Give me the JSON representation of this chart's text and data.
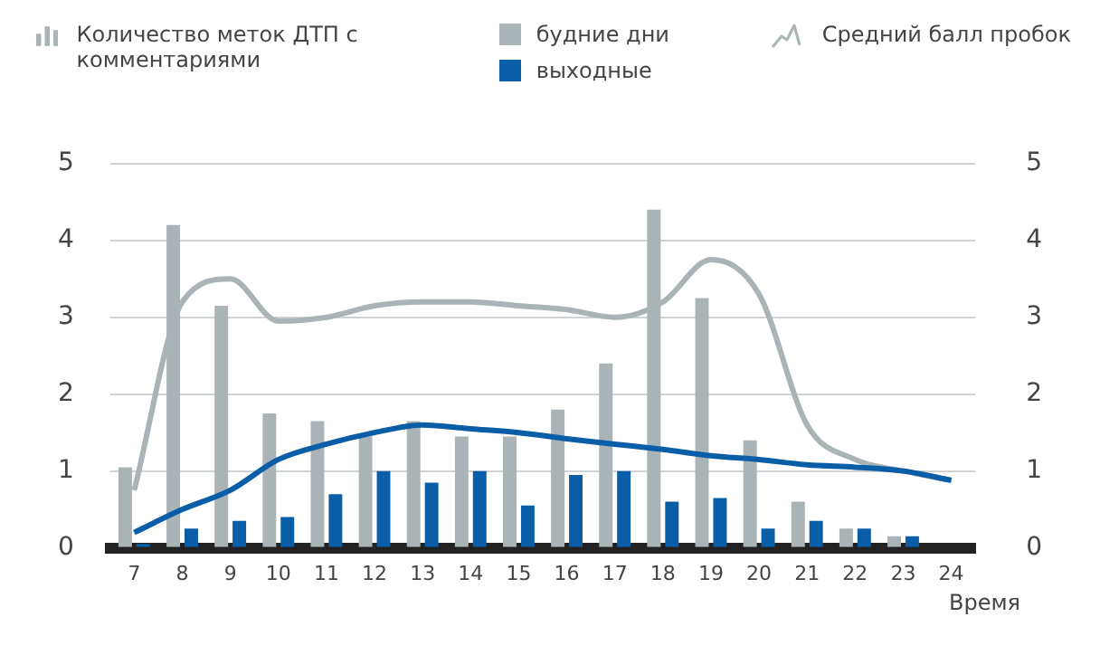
{
  "chart_data": {
    "type": "bar",
    "ylabel": "Количество меток ДТП с комментариями",
    "y2label": "Средний балл пробок",
    "xlabel": "Время",
    "categories": [
      "7",
      "8",
      "9",
      "10",
      "11",
      "12",
      "13",
      "14",
      "15",
      "16",
      "17",
      "18",
      "19",
      "20",
      "21",
      "22",
      "23",
      "24"
    ],
    "series": [
      {
        "name": "будние дни",
        "color": "#aab3b5",
        "values": [
          1.05,
          4.2,
          3.15,
          1.75,
          1.65,
          1.45,
          1.65,
          1.45,
          1.45,
          1.8,
          2.4,
          4.4,
          3.25,
          1.4,
          0.6,
          0.25,
          0.15,
          null
        ]
      },
      {
        "name": "выходные",
        "color": "#0a5ea8",
        "values": [
          0.05,
          0.25,
          0.35,
          0.4,
          0.7,
          1.0,
          0.85,
          1.0,
          0.55,
          0.95,
          1.0,
          0.6,
          0.65,
          0.25,
          0.35,
          0.25,
          0.15,
          null
        ]
      },
      {
        "type": "line",
        "axis": "y2",
        "color": "#aab3b5",
        "values": [
          0.75,
          3.2,
          3.5,
          2.95,
          3.0,
          3.15,
          3.2,
          3.2,
          3.15,
          3.1,
          3.0,
          3.2,
          3.75,
          3.3,
          1.6,
          1.15,
          1.0,
          0.88
        ]
      },
      {
        "type": "line",
        "axis": "y2",
        "color": "#0a5ea8",
        "values": [
          0.2,
          0.5,
          0.75,
          1.15,
          1.35,
          1.5,
          1.6,
          1.55,
          1.5,
          1.42,
          1.35,
          1.28,
          1.2,
          1.15,
          1.08,
          1.05,
          1.0,
          0.88
        ]
      }
    ],
    "ylim": [
      0,
      5
    ],
    "yticks": [
      0,
      1,
      2,
      3,
      4,
      5
    ],
    "y2lim": [
      0,
      5
    ],
    "y2ticks": [
      0,
      1,
      2,
      3,
      4,
      5
    ],
    "grid": "y",
    "legend": "top",
    "marker": "none",
    "line_style": "solid"
  }
}
